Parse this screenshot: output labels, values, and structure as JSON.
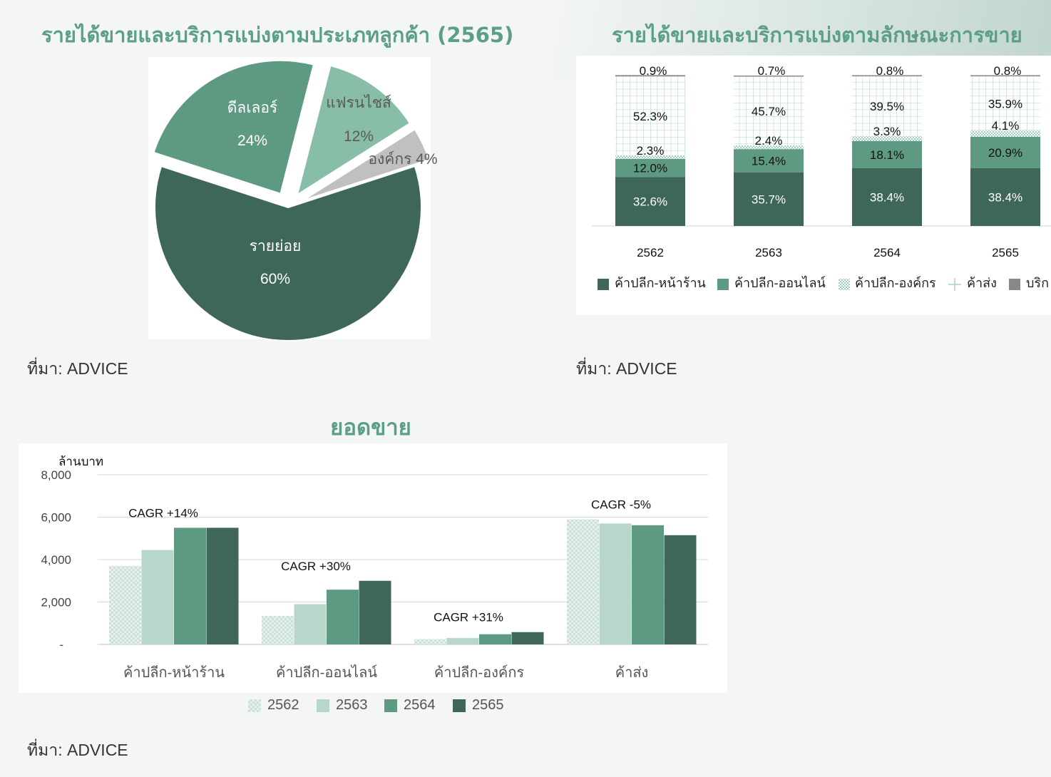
{
  "colors": {
    "title": "#5c9f88",
    "retail_store": "#3f6759",
    "retail_online": "#5e9a82",
    "retail_corporate": "#b5d9cd",
    "wholesale": "#b6d7ca",
    "service": "#888888",
    "year_2562": "#d6e9e2",
    "year_2563": "#b6d7ca",
    "year_2564": "#5e9a82",
    "year_2565": "#3f6759",
    "pie_retail": "#3f6759",
    "pie_dealer": "#5e9a82",
    "pie_franchise": "#88bda7",
    "pie_corporate": "#c0c0c0"
  },
  "pie": {
    "title": "รายได้ขายและบริการแบ่งตามประเภทลูกค้า (2565)",
    "source": "ที่มา: ADVICE",
    "labels": {
      "retail_name": "รายย่อย",
      "retail_pct": "60%",
      "dealer_name": "ดีลเลอร์",
      "dealer_pct": "24%",
      "franchise_name": "แฟรนไชส์",
      "franchise_pct": "12%",
      "corporate": "องค์กร 4%"
    }
  },
  "stacked": {
    "title": "รายได้ขายและบริการแบ่งตามลักษณะการขาย",
    "source": "ที่มา: ADVICE",
    "legend": {
      "retail_store": "ค้าปลีก-หน้าร้าน",
      "retail_online": "ค้าปลีก-ออนไลน์",
      "retail_corporate": "ค้าปลีก-องค์กร",
      "wholesale": "ค้าส่ง",
      "service": "บริก"
    }
  },
  "bars": {
    "title": "ยอดขาย",
    "source": "ที่มา: ADVICE"
  },
  "chart_data": [
    {
      "type": "pie",
      "title": "รายได้ขายและบริการแบ่งตามประเภทลูกค้า (2565)",
      "slices": [
        {
          "name": "รายย่อย",
          "value": 60
        },
        {
          "name": "ดีลเลอร์",
          "value": 24
        },
        {
          "name": "แฟรนไชส์",
          "value": 12
        },
        {
          "name": "องค์กร",
          "value": 4
        }
      ]
    },
    {
      "type": "bar",
      "stacked": true,
      "title": "รายได้ขายและบริการแบ่งตามลักษณะการขาย",
      "categories": [
        "2562",
        "2563",
        "2564",
        "2565"
      ],
      "series": [
        {
          "name": "ค้าปลีก-หน้าร้าน",
          "values": [
            32.6,
            35.7,
            38.4,
            38.4
          ],
          "labels": [
            "32.6%",
            "35.7%",
            "38.4%",
            "38.4%"
          ]
        },
        {
          "name": "ค้าปลีก-ออนไลน์",
          "values": [
            12.0,
            15.4,
            18.1,
            20.9
          ],
          "labels": [
            "12.0%",
            "15.4%",
            "18.1%",
            "20.9%"
          ]
        },
        {
          "name": "ค้าปลีก-องค์กร",
          "values": [
            2.3,
            2.4,
            3.3,
            4.1
          ],
          "labels": [
            "2.3%",
            "2.4%",
            "3.3%",
            "4.1%"
          ]
        },
        {
          "name": "ค้าส่ง",
          "values": [
            52.3,
            45.7,
            39.5,
            35.9
          ],
          "labels": [
            "52.3%",
            "45.7%",
            "39.5%",
            "35.9%"
          ]
        },
        {
          "name": "บริก",
          "values": [
            0.9,
            0.7,
            0.8,
            0.8
          ],
          "labels": [
            "0.9%",
            "0.7%",
            "0.8%",
            "0.8%"
          ]
        }
      ],
      "ylim": [
        0,
        100
      ],
      "legend": "bottom"
    },
    {
      "type": "bar",
      "title": "ยอดขาย",
      "ylabel": "ล้านบาท",
      "categories": [
        "ค้าปลีก-หน้าร้าน",
        "ค้าปลีก-ออนไลน์",
        "ค้าปลีก-องค์กร",
        "ค้าส่ง"
      ],
      "series": [
        {
          "name": "2562",
          "values": [
            3700,
            1350,
            250,
            5900
          ]
        },
        {
          "name": "2563",
          "values": [
            4450,
            1900,
            300,
            5700
          ]
        },
        {
          "name": "2564",
          "values": [
            5500,
            2580,
            480,
            5620
          ]
        },
        {
          "name": "2565",
          "values": [
            5500,
            3000,
            580,
            5150
          ]
        }
      ],
      "annotations": [
        "CAGR +14%",
        "CAGR +30%",
        "CAGR +31%",
        "CAGR -5%"
      ],
      "yticks": [
        "-",
        "2,000",
        "4,000",
        "6,000",
        "8,000"
      ],
      "ylim": [
        0,
        8000
      ],
      "grid": true,
      "legend": "bottom"
    }
  ]
}
